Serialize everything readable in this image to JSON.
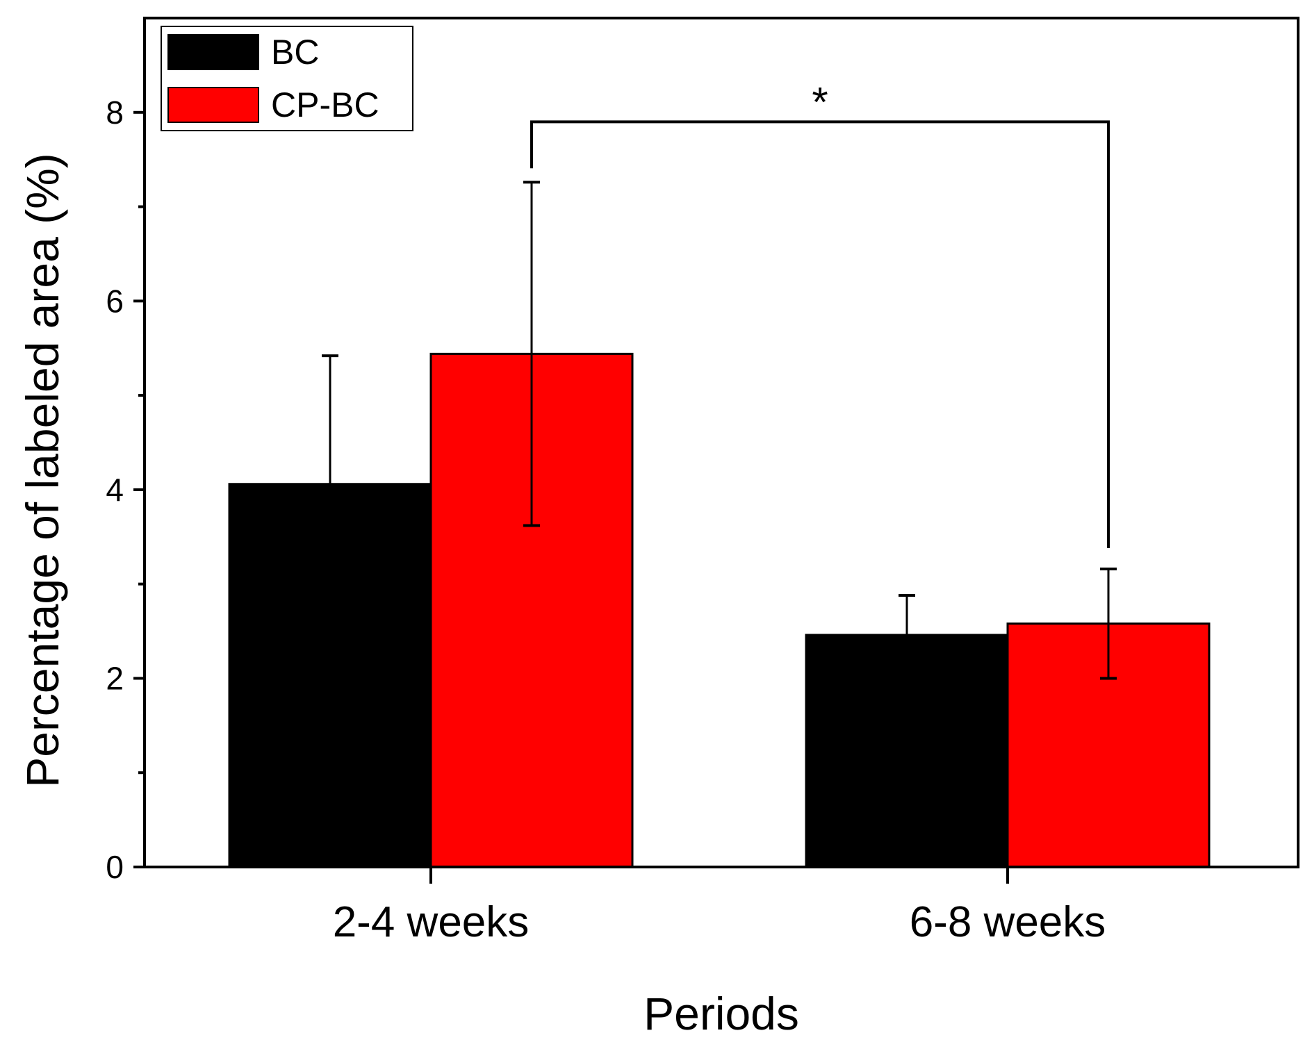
{
  "chart_data": {
    "type": "bar",
    "title": "",
    "xlabel": "Periods",
    "ylabel": "Percentage of labeled area (%)",
    "ylim": [
      0,
      9
    ],
    "yticks": [
      0,
      2,
      4,
      6,
      8
    ],
    "y_minor_ticks": [
      1,
      3,
      5,
      7
    ],
    "categories": [
      "2-4 weeks",
      "6-8 weeks"
    ],
    "series": [
      {
        "name": "BC",
        "color": "#000000",
        "values": [
          4.06,
          2.46
        ],
        "errors": [
          1.36,
          0.42
        ]
      },
      {
        "name": "CP-BC",
        "color": "#ff0000",
        "values": [
          5.44,
          2.58
        ],
        "errors": [
          1.82,
          0.58
        ]
      }
    ],
    "legend_position": "top-left",
    "grid": false,
    "annotations": [
      {
        "text": "*",
        "type": "significance-bracket",
        "from": {
          "category": "2-4 weeks",
          "series": "CP-BC"
        },
        "to": {
          "category": "6-8 weeks",
          "series": "CP-BC"
        },
        "bracket_y": 7.9
      }
    ]
  }
}
